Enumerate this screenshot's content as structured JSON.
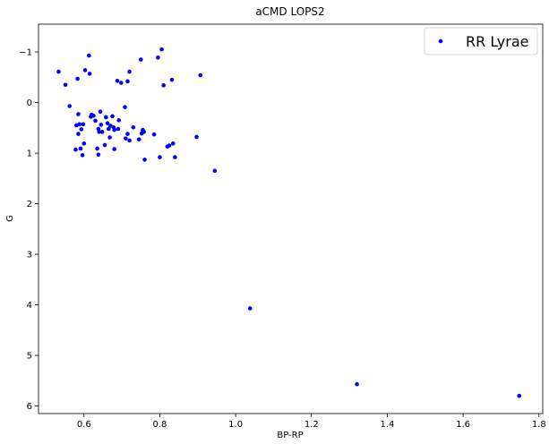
{
  "chart_data": {
    "type": "scatter",
    "title": "aCMD LOPS2",
    "xlabel": "BP-RP",
    "ylabel": "G",
    "xlim": [
      0.48,
      1.81
    ],
    "ylim": [
      6.15,
      -1.55
    ],
    "y_inverted": true,
    "grid": false,
    "legend_position": "top-right",
    "x_ticks": [
      0.6,
      0.8,
      1.0,
      1.2,
      1.4,
      1.6,
      1.8
    ],
    "x_tick_labels": [
      "0.6",
      "0.8",
      "1.0",
      "1.2",
      "1.4",
      "1.6",
      "1.8"
    ],
    "y_ticks": [
      -1,
      0,
      1,
      2,
      3,
      4,
      5,
      6
    ],
    "y_tick_labels": [
      "−1",
      "0",
      "1",
      "2",
      "3",
      "4",
      "5",
      "6"
    ],
    "series": [
      {
        "name": "RR Lyrae",
        "color": "#0000ff",
        "marker": "circle",
        "points": [
          [
            0.533,
            -0.61
          ],
          [
            0.551,
            -0.35
          ],
          [
            0.562,
            0.07
          ],
          [
            0.578,
            0.93
          ],
          [
            0.58,
            0.45
          ],
          [
            0.583,
            -0.47
          ],
          [
            0.585,
            0.23
          ],
          [
            0.585,
            0.62
          ],
          [
            0.588,
            0.43
          ],
          [
            0.591,
            0.91
          ],
          [
            0.593,
            0.53
          ],
          [
            0.596,
            1.04
          ],
          [
            0.598,
            0.43
          ],
          [
            0.6,
            0.81
          ],
          [
            0.603,
            -0.64
          ],
          [
            0.613,
            -0.93
          ],
          [
            0.615,
            -0.57
          ],
          [
            0.618,
            0.28
          ],
          [
            0.62,
            0.24
          ],
          [
            0.625,
            0.26
          ],
          [
            0.63,
            0.36
          ],
          [
            0.635,
            0.91
          ],
          [
            0.638,
            1.03
          ],
          [
            0.638,
            0.52
          ],
          [
            0.64,
            0.58
          ],
          [
            0.643,
            0.18
          ],
          [
            0.645,
            0.44
          ],
          [
            0.648,
            0.58
          ],
          [
            0.655,
            0.84
          ],
          [
            0.658,
            0.29
          ],
          [
            0.662,
            0.41
          ],
          [
            0.665,
            0.52
          ],
          [
            0.668,
            0.69
          ],
          [
            0.67,
            0.46
          ],
          [
            0.675,
            0.27
          ],
          [
            0.678,
            0.49
          ],
          [
            0.68,
            0.54
          ],
          [
            0.68,
            0.92
          ],
          [
            0.688,
            -0.43
          ],
          [
            0.69,
            0.52
          ],
          [
            0.692,
            0.35
          ],
          [
            0.698,
            -0.39
          ],
          [
            0.708,
            0.09
          ],
          [
            0.71,
            0.71
          ],
          [
            0.715,
            0.62
          ],
          [
            0.715,
            -0.42
          ],
          [
            0.72,
            -0.61
          ],
          [
            0.72,
            0.75
          ],
          [
            0.73,
            0.49
          ],
          [
            0.745,
            0.73
          ],
          [
            0.75,
            -0.85
          ],
          [
            0.752,
            0.61
          ],
          [
            0.755,
            0.54
          ],
          [
            0.758,
            0.58
          ],
          [
            0.76,
            1.13
          ],
          [
            0.785,
            0.63
          ],
          [
            0.795,
            -0.89
          ],
          [
            0.8,
            1.08
          ],
          [
            0.805,
            -1.05
          ],
          [
            0.81,
            -0.34
          ],
          [
            0.82,
            0.87
          ],
          [
            0.825,
            0.85
          ],
          [
            0.832,
            -0.45
          ],
          [
            0.835,
            0.81
          ],
          [
            0.84,
            1.08
          ],
          [
            0.897,
            0.68
          ],
          [
            0.907,
            -0.54
          ],
          [
            0.945,
            1.35
          ],
          [
            1.038,
            4.07
          ],
          [
            1.32,
            5.57
          ],
          [
            1.748,
            5.8
          ]
        ]
      }
    ]
  }
}
